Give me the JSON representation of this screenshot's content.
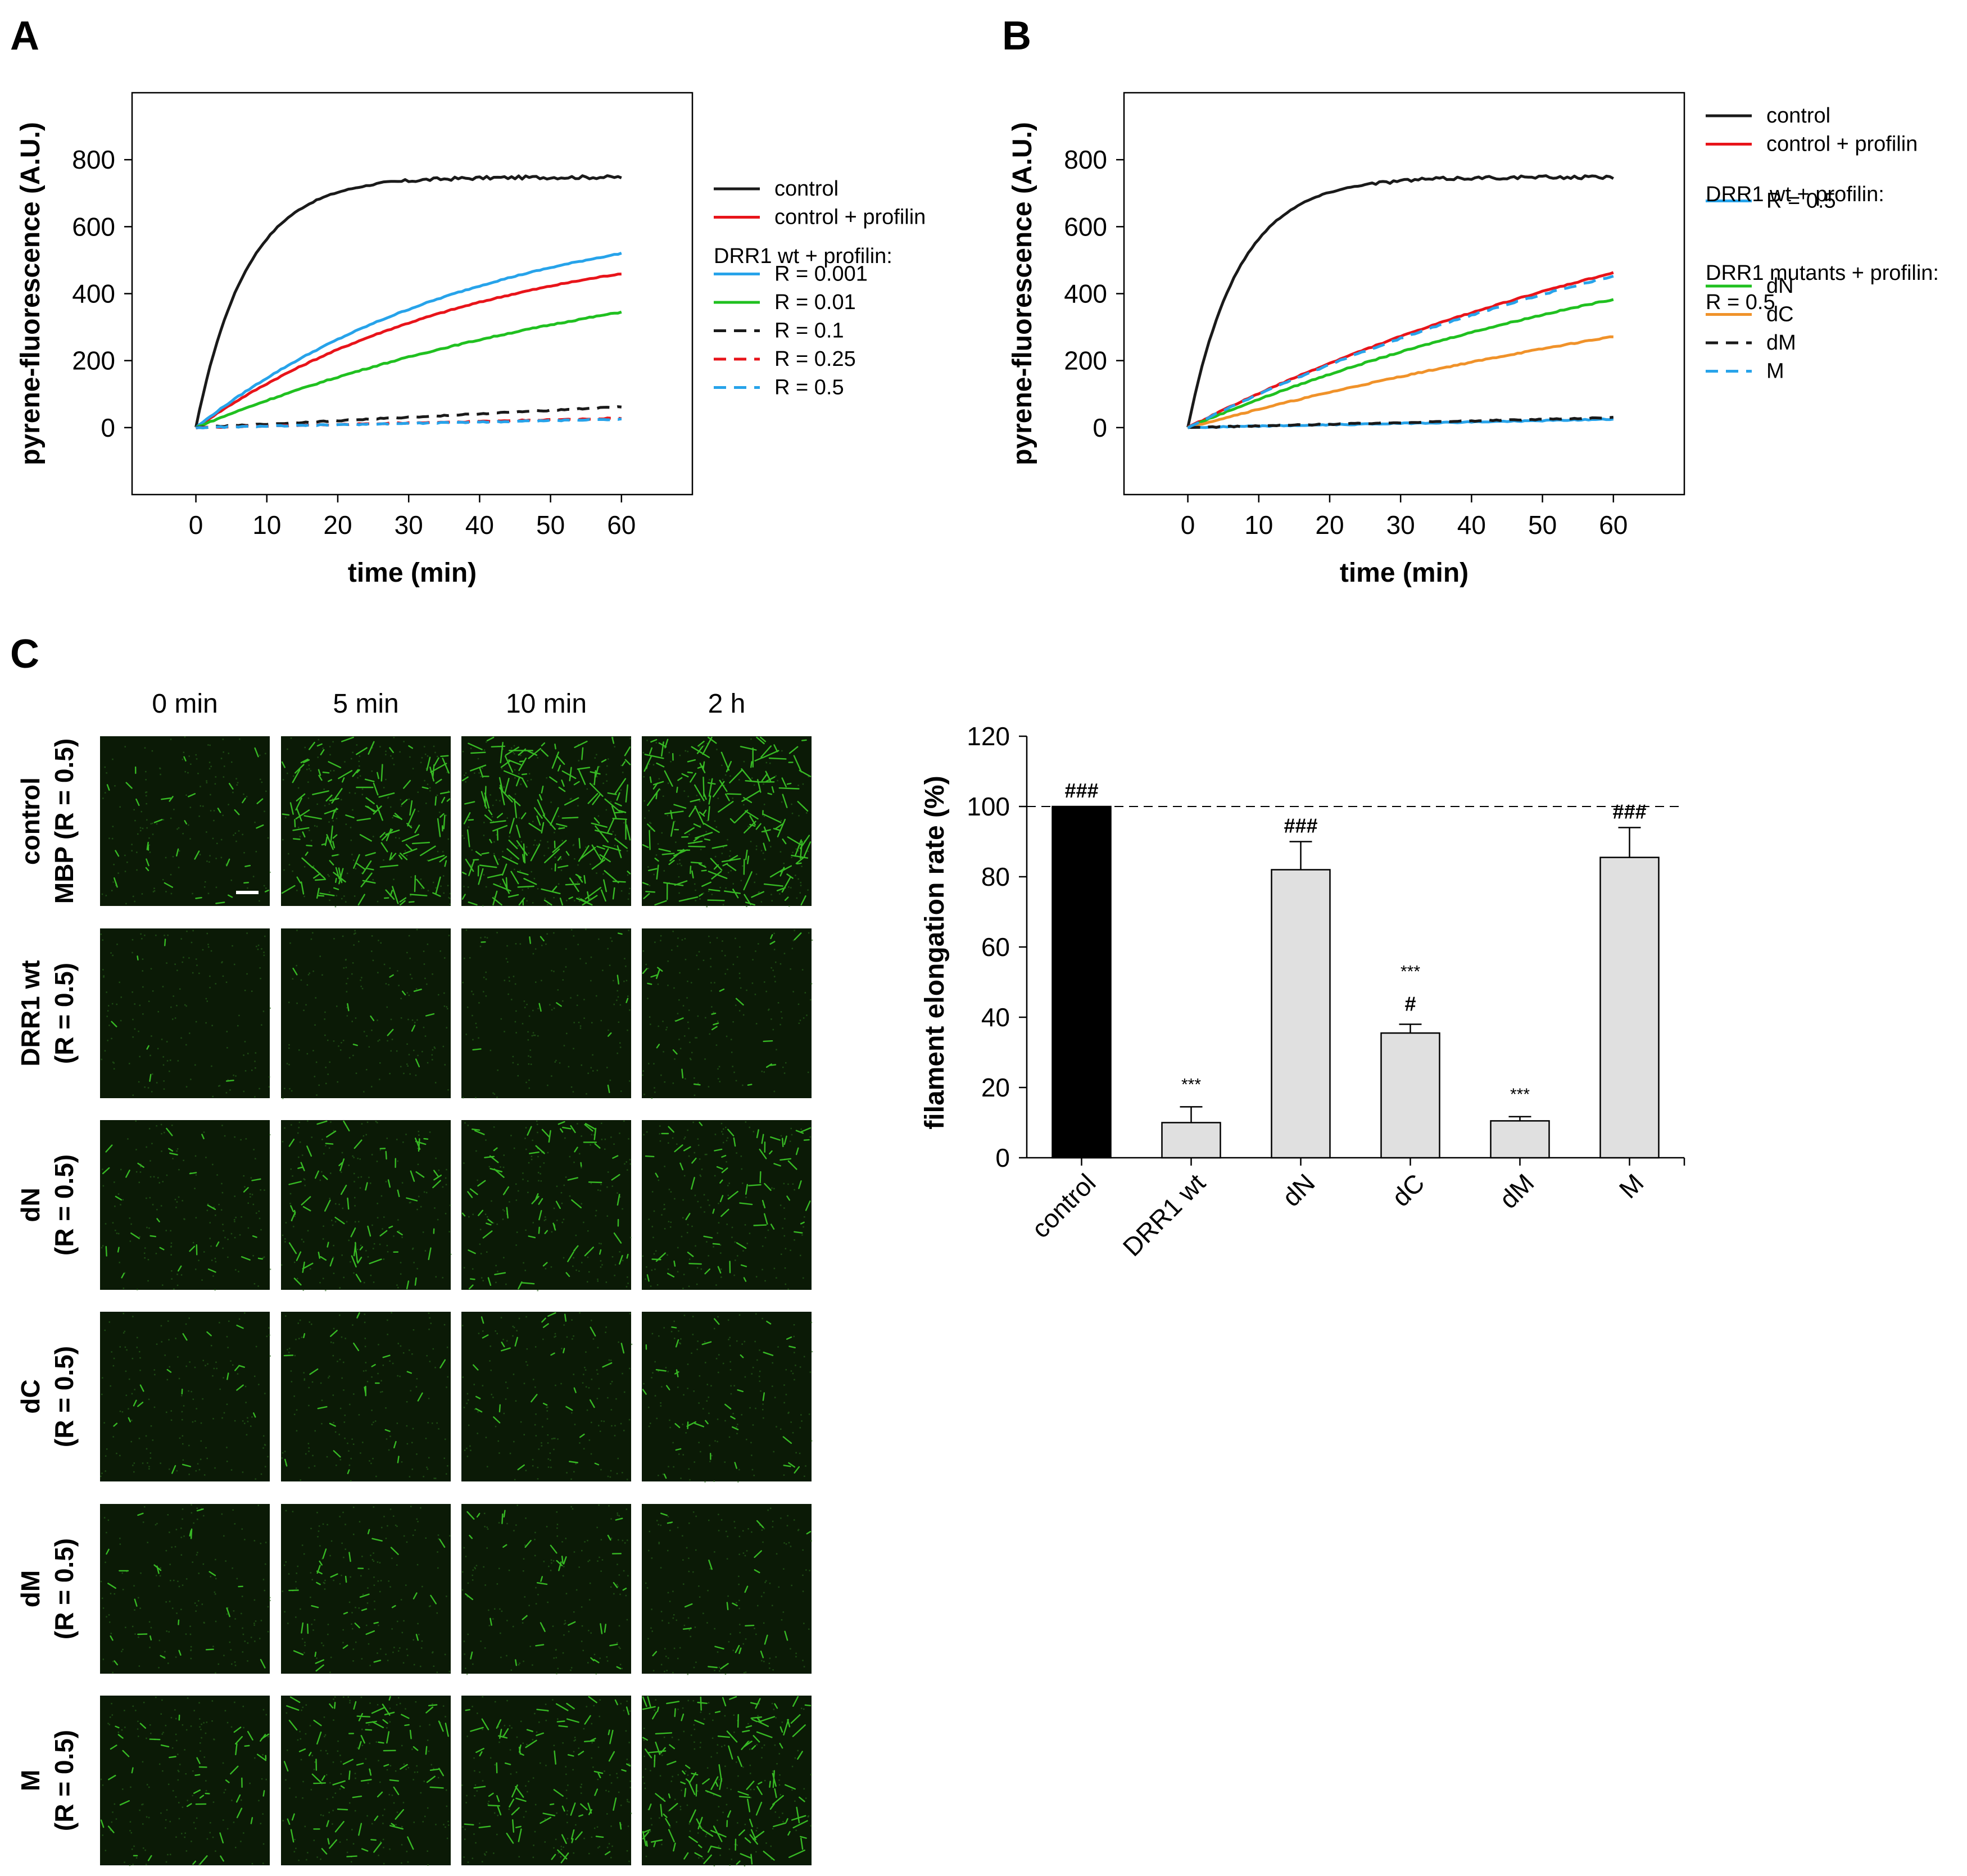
{
  "colors": {
    "control": "#1a1a1a",
    "profilin": "#e8141a",
    "blue": "#27a3ea",
    "green": "#20c020",
    "orange": "#f0922a",
    "bar_control": "#000000",
    "bar_other": "#e0e0e0",
    "micro_bg": "#0b1a06",
    "micro_fil": "#3fd62a"
  },
  "panel_labels": {
    "a": "A",
    "b": "B",
    "c": "C"
  },
  "chart_data": [
    {
      "id": "A",
      "type": "line",
      "xlabel": "time (min)",
      "ylabel": "pyrene-fluorescence (A.U.)",
      "xlim": [
        -9,
        70
      ],
      "ylim": [
        -200,
        1000
      ],
      "xticks": [
        "0",
        "10",
        "20",
        "30",
        "40",
        "50",
        "60"
      ],
      "yticks": [
        "0",
        "200",
        "400",
        "600",
        "800"
      ],
      "legend_headers": [
        "DRR1 wt + profilin:"
      ],
      "series": [
        {
          "name": "control",
          "color": "control",
          "dash": false,
          "kind": "plateau",
          "plateau": 748,
          "k": 0.14,
          "legend_row": 0
        },
        {
          "name": "control + profilin",
          "color": "profilin",
          "dash": false,
          "kind": "curve",
          "end": 460,
          "k": 0.025,
          "legend_row": 1
        },
        {
          "name": "R = 0.001",
          "color": "blue",
          "dash": false,
          "kind": "curve",
          "end": 520,
          "k": 0.025,
          "legend_row": 3
        },
        {
          "name": "R = 0.01",
          "color": "green",
          "dash": false,
          "kind": "curve",
          "end": 345,
          "k": 0.015,
          "legend_row": 4
        },
        {
          "name": "R = 0.1",
          "color": "control",
          "dash": true,
          "kind": "linear",
          "end": 62,
          "legend_row": 5
        },
        {
          "name": "R = 0.25",
          "color": "profilin",
          "dash": true,
          "kind": "linear",
          "end": 28,
          "legend_row": 6
        },
        {
          "name": "R = 0.5",
          "color": "blue",
          "dash": true,
          "kind": "linear",
          "end": 25,
          "legend_row": 7
        }
      ]
    },
    {
      "id": "B",
      "type": "line",
      "xlabel": "time (min)",
      "ylabel": "pyrene-fluorescence (A.U.)",
      "xlim": [
        -9,
        70
      ],
      "ylim": [
        -200,
        1000
      ],
      "xticks": [
        "0",
        "10",
        "20",
        "30",
        "40",
        "50",
        "60"
      ],
      "yticks": [
        "0",
        "200",
        "400",
        "600",
        "800"
      ],
      "legend_headers": [
        "DRR1 wt + profilin:",
        "DRR1 mutants + profilin:",
        "R = 0.5"
      ],
      "series": [
        {
          "name": "control",
          "color": "control",
          "dash": false,
          "kind": "plateau",
          "plateau": 748,
          "k": 0.14,
          "legend_row": 0
        },
        {
          "name": "control + profilin",
          "color": "profilin",
          "dash": false,
          "kind": "curve",
          "end": 462,
          "k": 0.012,
          "legend_row": 1
        },
        {
          "name": "R = 0.5",
          "color": "blue",
          "dash": false,
          "kind": "linear",
          "end": 25,
          "legend_row": 3
        },
        {
          "name": "dN",
          "color": "green",
          "dash": false,
          "kind": "curve",
          "end": 383,
          "k": 0.012,
          "legend_row": 6
        },
        {
          "name": "dC",
          "color": "orange",
          "dash": false,
          "kind": "curve",
          "end": 272,
          "k": 0.008,
          "legend_row": 7
        },
        {
          "name": "dM",
          "color": "control",
          "dash": true,
          "kind": "linear",
          "end": 30,
          "legend_row": 8
        },
        {
          "name": "M",
          "color": "blue",
          "dash": true,
          "kind": "curve",
          "end": 452,
          "k": 0.012,
          "legend_row": 9
        }
      ]
    },
    {
      "id": "C",
      "type": "bar",
      "ylabel": "filament elongation rate (%)",
      "ylim": [
        0,
        120
      ],
      "yticks": [
        "0",
        "20",
        "40",
        "60",
        "80",
        "100",
        "120"
      ],
      "reference_line": 100,
      "categories": [
        "control",
        "DRR1 wt",
        "dN",
        "dC",
        "dM",
        "M"
      ],
      "values": [
        100,
        10,
        82,
        35.5,
        10.5,
        85.5
      ],
      "errors": [
        0,
        4.5,
        8,
        2.5,
        1.2,
        8.5
      ],
      "bar_colors": [
        "bar_control",
        "bar_other",
        "bar_other",
        "bar_other",
        "bar_other",
        "bar_other"
      ],
      "hash_marks": [
        "###",
        "",
        "###",
        "#",
        "",
        "###"
      ],
      "star_marks": [
        "",
        "***",
        "",
        "***",
        "***",
        ""
      ]
    }
  ],
  "micrographs": {
    "columns": [
      "0 min",
      "5 min",
      "10 min",
      "2 h"
    ],
    "rows": [
      {
        "label": [
          "control",
          "MBP (R = 0.5)"
        ],
        "density": [
          0.3,
          1.3,
          1.6,
          1.6
        ]
      },
      {
        "label": [
          "DRR1 wt",
          "(R = 0.5)"
        ],
        "density": [
          0.05,
          0.1,
          0.1,
          0.2
        ]
      },
      {
        "label": [
          "dN",
          "(R = 0.5)"
        ],
        "density": [
          0.25,
          0.6,
          0.6,
          0.6
        ]
      },
      {
        "label": [
          "dC",
          "(R = 0.5)"
        ],
        "density": [
          0.15,
          0.2,
          0.25,
          0.3
        ]
      },
      {
        "label": [
          "dM",
          "(R = 0.5)"
        ],
        "density": [
          0.2,
          0.3,
          0.3,
          0.2
        ]
      },
      {
        "label": [
          "M",
          "(R = 0.5)"
        ],
        "density": [
          0.4,
          0.7,
          0.7,
          1.2
        ]
      }
    ]
  }
}
